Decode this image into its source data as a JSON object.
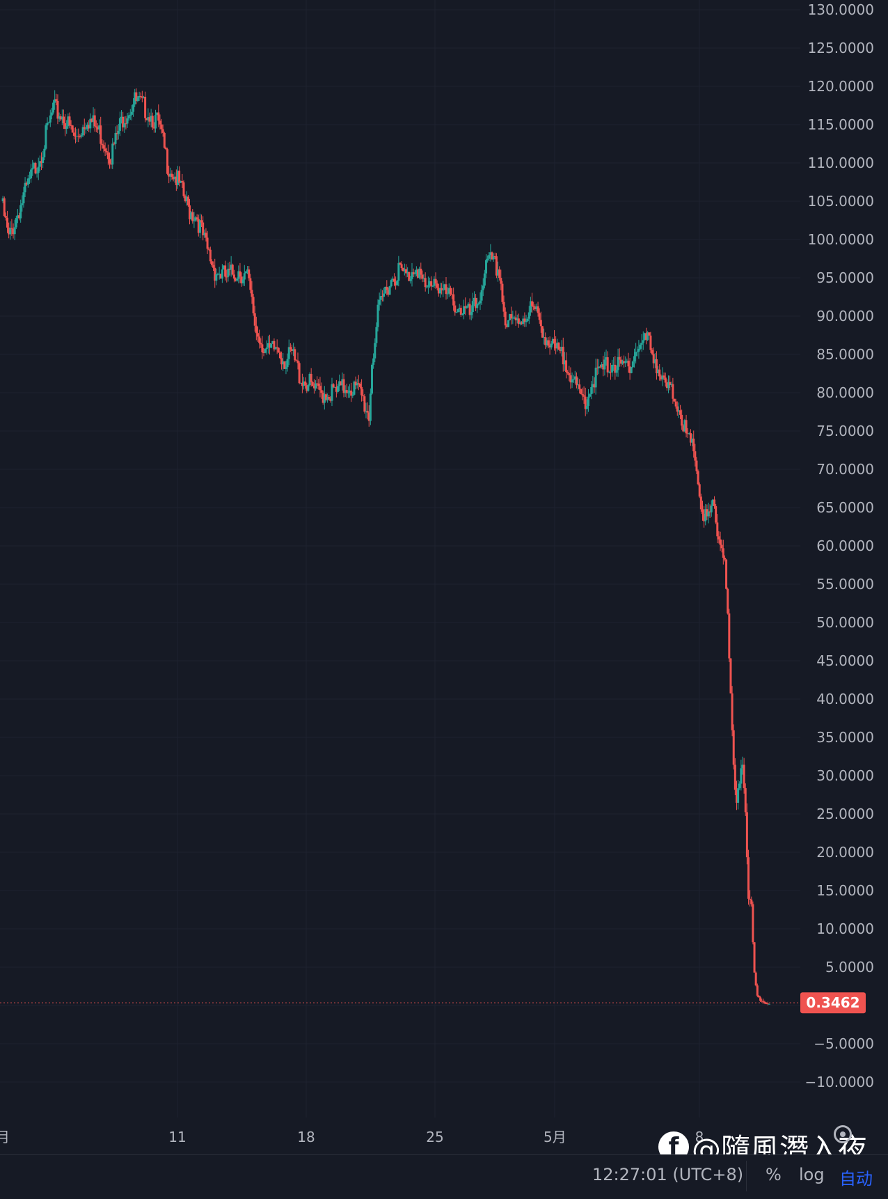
{
  "chart_data": {
    "type": "candlestick",
    "ylim": [
      -13,
      131
    ],
    "yticks": [
      "130.0000",
      "125.0000",
      "120.0000",
      "115.0000",
      "110.0000",
      "105.0000",
      "100.0000",
      "95.0000",
      "90.0000",
      "85.0000",
      "80.0000",
      "75.0000",
      "70.0000",
      "65.0000",
      "60.0000",
      "55.0000",
      "50.0000",
      "45.0000",
      "40.0000",
      "35.0000",
      "30.0000",
      "25.0000",
      "20.0000",
      "15.0000",
      "10.0000",
      "5.0000",
      "0.0000",
      "−5.0000",
      "−10.0000"
    ],
    "xticks": [
      "月",
      "11",
      "18",
      "25",
      "5月",
      "8"
    ],
    "last_price": 0.3462,
    "last_price_label": "0.3462",
    "up_color": "#26a69a",
    "down_color": "#ef5350",
    "close_path": [
      [
        0,
        105
      ],
      [
        5,
        100
      ],
      [
        12,
        104
      ],
      [
        20,
        108
      ],
      [
        28,
        112
      ],
      [
        35,
        117
      ],
      [
        42,
        116
      ],
      [
        50,
        113
      ],
      [
        58,
        116
      ],
      [
        66,
        114
      ],
      [
        74,
        111
      ],
      [
        82,
        116
      ],
      [
        90,
        118
      ],
      [
        98,
        117
      ],
      [
        106,
        115
      ],
      [
        112,
        110
      ],
      [
        118,
        108
      ],
      [
        126,
        104
      ],
      [
        132,
        103
      ],
      [
        138,
        99
      ],
      [
        144,
        96
      ],
      [
        152,
        95
      ],
      [
        160,
        96
      ],
      [
        166,
        95
      ],
      [
        172,
        88
      ],
      [
        180,
        85
      ],
      [
        186,
        86
      ],
      [
        192,
        84
      ],
      [
        196,
        85
      ],
      [
        202,
        82
      ],
      [
        208,
        81
      ],
      [
        212,
        80
      ],
      [
        220,
        80
      ],
      [
        226,
        80
      ],
      [
        234,
        81
      ],
      [
        242,
        80
      ],
      [
        248,
        77
      ],
      [
        250,
        84
      ],
      [
        254,
        90
      ],
      [
        260,
        94
      ],
      [
        268,
        96
      ],
      [
        274,
        95
      ],
      [
        280,
        97
      ],
      [
        286,
        93
      ],
      [
        292,
        95
      ],
      [
        298,
        93
      ],
      [
        304,
        92
      ],
      [
        310,
        91
      ],
      [
        316,
        90
      ],
      [
        322,
        92
      ],
      [
        326,
        96
      ],
      [
        330,
        97
      ],
      [
        336,
        96
      ],
      [
        340,
        89
      ],
      [
        346,
        89
      ],
      [
        352,
        90
      ],
      [
        358,
        91
      ],
      [
        364,
        89
      ],
      [
        370,
        86
      ],
      [
        376,
        85
      ],
      [
        382,
        84
      ],
      [
        388,
        80
      ],
      [
        394,
        79
      ],
      [
        400,
        82
      ],
      [
        406,
        83
      ],
      [
        412,
        84
      ],
      [
        418,
        83
      ],
      [
        424,
        84
      ],
      [
        430,
        86
      ],
      [
        436,
        87
      ],
      [
        442,
        84
      ],
      [
        446,
        81
      ],
      [
        452,
        80
      ],
      [
        458,
        78
      ],
      [
        462,
        74
      ],
      [
        468,
        72
      ],
      [
        472,
        65
      ],
      [
        476,
        63
      ],
      [
        480,
        65
      ],
      [
        484,
        61
      ],
      [
        488,
        59
      ],
      [
        490,
        50
      ],
      [
        492,
        40
      ],
      [
        494,
        30
      ],
      [
        496,
        25
      ],
      [
        498,
        30
      ],
      [
        500,
        32
      ],
      [
        502,
        26
      ],
      [
        504,
        15
      ],
      [
        506,
        12
      ],
      [
        508,
        4
      ],
      [
        510,
        1
      ],
      [
        514,
        0.5
      ],
      [
        518,
        0.3462
      ]
    ]
  },
  "bottom_bar": {
    "clock": "12:27:01 (UTC+8)",
    "percent_label": "%",
    "log_label": "log",
    "auto_label": "自动"
  },
  "watermark": {
    "icon": "f",
    "text": "@隨風潛入夜"
  },
  "icons": {
    "settings": "gear-icon",
    "brand": "facebook-icon"
  }
}
